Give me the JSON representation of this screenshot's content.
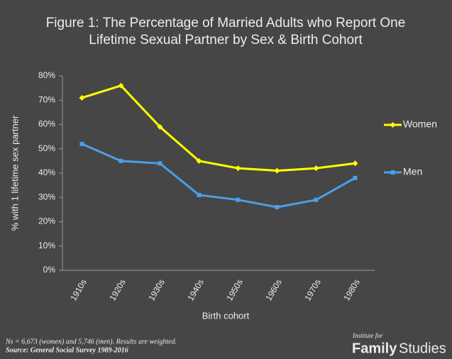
{
  "chart_data": {
    "type": "line",
    "title": [
      "Figure 1: The Percentage of Married Adults who Report One",
      "Lifetime Sexual Partner by Sex & Birth Cohort"
    ],
    "x_label": "Birth cohort",
    "y_label": "% with 1 lifetime sex partner",
    "categories": [
      "1910s",
      "1920s",
      "1930s",
      "1940s",
      "1950s",
      "1960s",
      "1970s",
      "1980s"
    ],
    "series": [
      {
        "name": "Women",
        "color": "#ffff00",
        "values": [
          71,
          76,
          59,
          45,
          42,
          41,
          42,
          44
        ]
      },
      {
        "name": "Men",
        "color": "#4a9fe8",
        "values": [
          52,
          45,
          44,
          31,
          29,
          26,
          29,
          38
        ]
      }
    ],
    "ylim": [
      0,
      80
    ],
    "yticks": [
      {
        "value": 0,
        "label": "0%"
      },
      {
        "value": 10,
        "label": "10%"
      },
      {
        "value": 20,
        "label": "20%"
      },
      {
        "value": 30,
        "label": "30%"
      },
      {
        "value": 40,
        "label": "40%"
      },
      {
        "value": 50,
        "label": "50%"
      },
      {
        "value": 60,
        "label": "60%"
      },
      {
        "value": 70,
        "label": "70%"
      },
      {
        "value": 80,
        "label": "80%"
      }
    ],
    "legend": "right",
    "notes": [
      "Ns = 6,673 (women) and 5,746 (men). Results are weighted.",
      "Source: General Social Survey 1989-2016"
    ],
    "logo": {
      "top": "Institute for",
      "bold": "Family",
      "rest": "Studies"
    }
  }
}
